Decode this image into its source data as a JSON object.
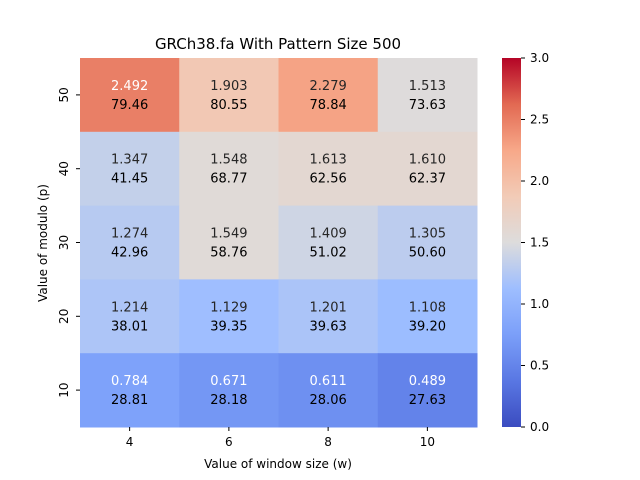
{
  "chart_data": {
    "type": "heatmap",
    "title": "GRCh38.fa With Pattern Size 500",
    "xlabel": "Value of window size (w)",
    "ylabel": "Value of modulo (p)",
    "x_categories": [
      "4",
      "6",
      "8",
      "10"
    ],
    "y_categories": [
      "50",
      "40",
      "30",
      "20",
      "10"
    ],
    "values": [
      [
        2.492,
        1.903,
        2.279,
        1.513
      ],
      [
        1.347,
        1.548,
        1.613,
        1.61
      ],
      [
        1.274,
        1.549,
        1.409,
        1.305
      ],
      [
        1.214,
        1.129,
        1.201,
        1.108
      ],
      [
        0.784,
        0.671,
        0.611,
        0.489
      ]
    ],
    "secondary_values": [
      [
        79.46,
        80.55,
        78.84,
        73.63
      ],
      [
        41.45,
        68.77,
        62.56,
        62.37
      ],
      [
        42.96,
        58.76,
        51.02,
        50.6
      ],
      [
        38.01,
        39.35,
        39.63,
        39.2
      ],
      [
        28.81,
        28.18,
        28.06,
        27.63
      ]
    ],
    "value_labels": [
      [
        "2.492",
        "1.903",
        "2.279",
        "1.513"
      ],
      [
        "1.347",
        "1.548",
        "1.613",
        "1.610"
      ],
      [
        "1.274",
        "1.549",
        "1.409",
        "1.305"
      ],
      [
        "1.214",
        "1.129",
        "1.201",
        "1.108"
      ],
      [
        "0.784",
        "0.671",
        "0.611",
        "0.489"
      ]
    ],
    "secondary_labels": [
      [
        "79.46",
        "80.55",
        "78.84",
        "73.63"
      ],
      [
        "41.45",
        "68.77",
        "62.56",
        "62.37"
      ],
      [
        "42.96",
        "58.76",
        "51.02",
        "50.60"
      ],
      [
        "38.01",
        "39.35",
        "39.63",
        "39.20"
      ],
      [
        "28.81",
        "28.18",
        "28.06",
        "27.63"
      ]
    ],
    "colorbar": {
      "range": [
        0.0,
        3.0
      ],
      "ticks": [
        "0.0",
        "0.5",
        "1.0",
        "1.5",
        "2.0",
        "2.5",
        "3.0"
      ],
      "colormap": "coolwarm"
    },
    "grid": false,
    "legend": "colorbar-right"
  }
}
